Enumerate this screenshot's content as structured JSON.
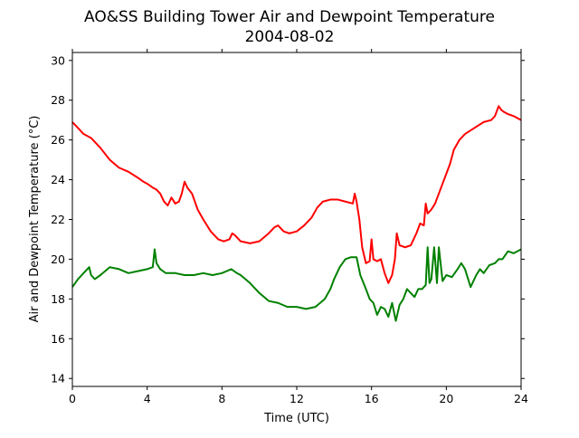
{
  "chart_data": {
    "type": "line",
    "title": "AO&SS Building Tower Air and Dewpoint Temperature",
    "subtitle": "2004-08-02",
    "xlabel": "Time (UTC)",
    "ylabel": "Air and Dewpoint Temperature (°C)",
    "xlim": [
      0,
      24
    ],
    "ylim": [
      13.6,
      30.4
    ],
    "xticks": [
      0,
      4,
      8,
      12,
      16,
      20,
      24
    ],
    "yticks": [
      14,
      16,
      18,
      20,
      22,
      24,
      26,
      28,
      30
    ],
    "grid": false,
    "series": [
      {
        "color": "#ff0000",
        "x": [
          0,
          0.3,
          0.6,
          1.0,
          1.5,
          2.0,
          2.5,
          3.0,
          3.5,
          3.8,
          4.0,
          4.3,
          4.5,
          4.7,
          4.9,
          5.1,
          5.3,
          5.5,
          5.7,
          5.85,
          6.0,
          6.15,
          6.4,
          6.7,
          7.0,
          7.4,
          7.8,
          8.1,
          8.4,
          8.55,
          8.7,
          9.0,
          9.5,
          10.0,
          10.5,
          10.8,
          11.0,
          11.3,
          11.6,
          12.0,
          12.4,
          12.8,
          13.1,
          13.4,
          13.8,
          14.2,
          14.6,
          15.0,
          15.1,
          15.2,
          15.35,
          15.5,
          15.7,
          15.9,
          16.0,
          16.1,
          16.3,
          16.5,
          16.7,
          16.9,
          17.1,
          17.25,
          17.35,
          17.5,
          17.8,
          18.1,
          18.4,
          18.6,
          18.8,
          18.9,
          19.0,
          19.2,
          19.4,
          19.6,
          19.8,
          20.0,
          20.2,
          20.4,
          20.7,
          21.0,
          21.5,
          22.0,
          22.4,
          22.6,
          22.8,
          22.95,
          23.1,
          23.3,
          23.6,
          24.0
        ],
        "y": [
          26.9,
          26.6,
          26.3,
          26.1,
          25.6,
          25.0,
          24.6,
          24.4,
          24.1,
          23.9,
          23.8,
          23.6,
          23.5,
          23.3,
          22.9,
          22.7,
          23.1,
          22.8,
          22.9,
          23.3,
          23.9,
          23.6,
          23.3,
          22.5,
          22.0,
          21.4,
          21.0,
          20.9,
          21.0,
          21.3,
          21.2,
          20.9,
          20.8,
          20.9,
          21.3,
          21.6,
          21.7,
          21.4,
          21.3,
          21.4,
          21.7,
          22.1,
          22.6,
          22.9,
          23.0,
          23.0,
          22.9,
          22.8,
          23.3,
          22.9,
          22.0,
          20.6,
          19.8,
          19.9,
          21.0,
          20.0,
          19.9,
          20.0,
          19.3,
          18.8,
          19.2,
          20.0,
          21.3,
          20.7,
          20.6,
          20.7,
          21.3,
          21.8,
          21.7,
          22.8,
          22.3,
          22.5,
          22.8,
          23.3,
          23.8,
          24.3,
          24.8,
          25.5,
          26.0,
          26.3,
          26.6,
          26.9,
          27.0,
          27.2,
          27.7,
          27.5,
          27.4,
          27.3,
          27.2,
          27.0
        ]
      },
      {
        "color": "#008000",
        "x": [
          0,
          0.3,
          0.6,
          0.9,
          1.0,
          1.2,
          1.5,
          2.0,
          2.5,
          3.0,
          3.5,
          4.0,
          4.3,
          4.4,
          4.5,
          4.7,
          5.0,
          5.5,
          6.0,
          6.5,
          7.0,
          7.5,
          8.0,
          8.5,
          8.8,
          9.0,
          9.5,
          10.0,
          10.5,
          11.0,
          11.5,
          12.0,
          12.5,
          13.0,
          13.5,
          13.8,
          14.0,
          14.3,
          14.6,
          14.9,
          15.2,
          15.4,
          15.7,
          15.9,
          16.1,
          16.3,
          16.5,
          16.7,
          16.9,
          17.1,
          17.3,
          17.5,
          17.7,
          17.9,
          18.1,
          18.3,
          18.5,
          18.7,
          18.9,
          19.0,
          19.1,
          19.2,
          19.35,
          19.5,
          19.6,
          19.8,
          20.0,
          20.3,
          20.6,
          20.8,
          21.0,
          21.3,
          21.6,
          21.8,
          22.0,
          22.3,
          22.6,
          22.8,
          23.0,
          23.3,
          23.6,
          24.0
        ],
        "y": [
          18.6,
          19.0,
          19.3,
          19.6,
          19.2,
          19.0,
          19.2,
          19.6,
          19.5,
          19.3,
          19.4,
          19.5,
          19.6,
          20.5,
          19.8,
          19.5,
          19.3,
          19.3,
          19.2,
          19.2,
          19.3,
          19.2,
          19.3,
          19.5,
          19.3,
          19.2,
          18.8,
          18.3,
          17.9,
          17.8,
          17.6,
          17.6,
          17.5,
          17.6,
          18.0,
          18.5,
          19.0,
          19.6,
          20.0,
          20.1,
          20.1,
          19.2,
          18.5,
          18.0,
          17.8,
          17.2,
          17.6,
          17.5,
          17.1,
          17.8,
          16.9,
          17.7,
          18.0,
          18.5,
          18.3,
          18.1,
          18.5,
          18.5,
          18.7,
          20.6,
          18.8,
          19.0,
          20.6,
          18.8,
          20.6,
          18.9,
          19.2,
          19.1,
          19.5,
          19.8,
          19.5,
          18.6,
          19.2,
          19.5,
          19.3,
          19.7,
          19.8,
          20.0,
          20.0,
          20.4,
          20.3,
          20.5
        ]
      }
    ]
  }
}
